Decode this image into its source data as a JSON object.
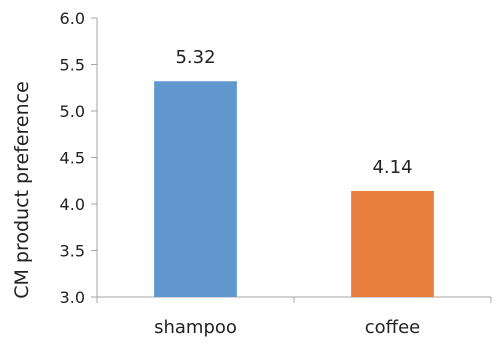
{
  "chart_data": {
    "type": "bar",
    "categories": [
      "shampoo",
      "coffee"
    ],
    "values": [
      5.32,
      4.14
    ],
    "value_labels": [
      "5.32",
      "4.14"
    ],
    "colors": [
      "#6097cd",
      "#e77e3d"
    ],
    "ylabel": "CM product preference",
    "ylim": [
      3.0,
      6.0
    ],
    "yticks": [
      3.0,
      3.5,
      4.0,
      4.5,
      5.0,
      5.5,
      6.0
    ],
    "ytick_labels": [
      "3.0",
      "3.5",
      "4.0",
      "4.5",
      "5.0",
      "5.5",
      "6.0"
    ],
    "grid": false,
    "legend": "none"
  }
}
